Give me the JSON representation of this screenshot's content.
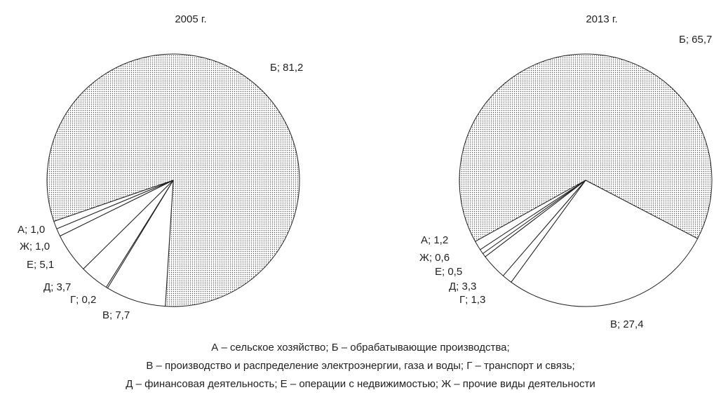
{
  "chart_data": [
    {
      "type": "pie",
      "title": "2005 г.",
      "values": [
        81.2,
        7.7,
        0.2,
        3.7,
        5.1,
        1.0,
        1.0
      ],
      "value_labels": [
        "Б; 81,2",
        "В; 7,7",
        "Г; 0,2",
        "Д; 3,7",
        "Е; 5,1",
        "Ж; 1,0",
        "А; 1,0"
      ],
      "colors": [
        "#555555",
        "#ffffff",
        "#ffffff",
        "#ffffff",
        "#ffffff",
        "#ffffff",
        "#ffffff"
      ]
    },
    {
      "type": "pie",
      "title": "2013 г.",
      "values": [
        65.7,
        27.4,
        1.3,
        3.3,
        0.5,
        0.6,
        1.2
      ],
      "value_labels": [
        "Б; 65,7",
        "В; 27,4",
        "Г; 1,3",
        "Д; 3,3",
        "Е; 0,5",
        "Ж; 0,6",
        "А; 1,2"
      ],
      "colors": [
        "#555555",
        "#ffffff",
        "#ffffff",
        "#ffffff",
        "#ffffff",
        "#ffffff",
        "#ffffff"
      ]
    }
  ],
  "legend": [
    "А – сельское хозяйство; Б – обрабатывающие производства;",
    "В – производство и распределение электроэнергии, газа и воды; Г – транспорт и связь;",
    "Д – финансовая деятельность; Е – операции с недвижимостью; Ж – прочие виды деятельности"
  ]
}
